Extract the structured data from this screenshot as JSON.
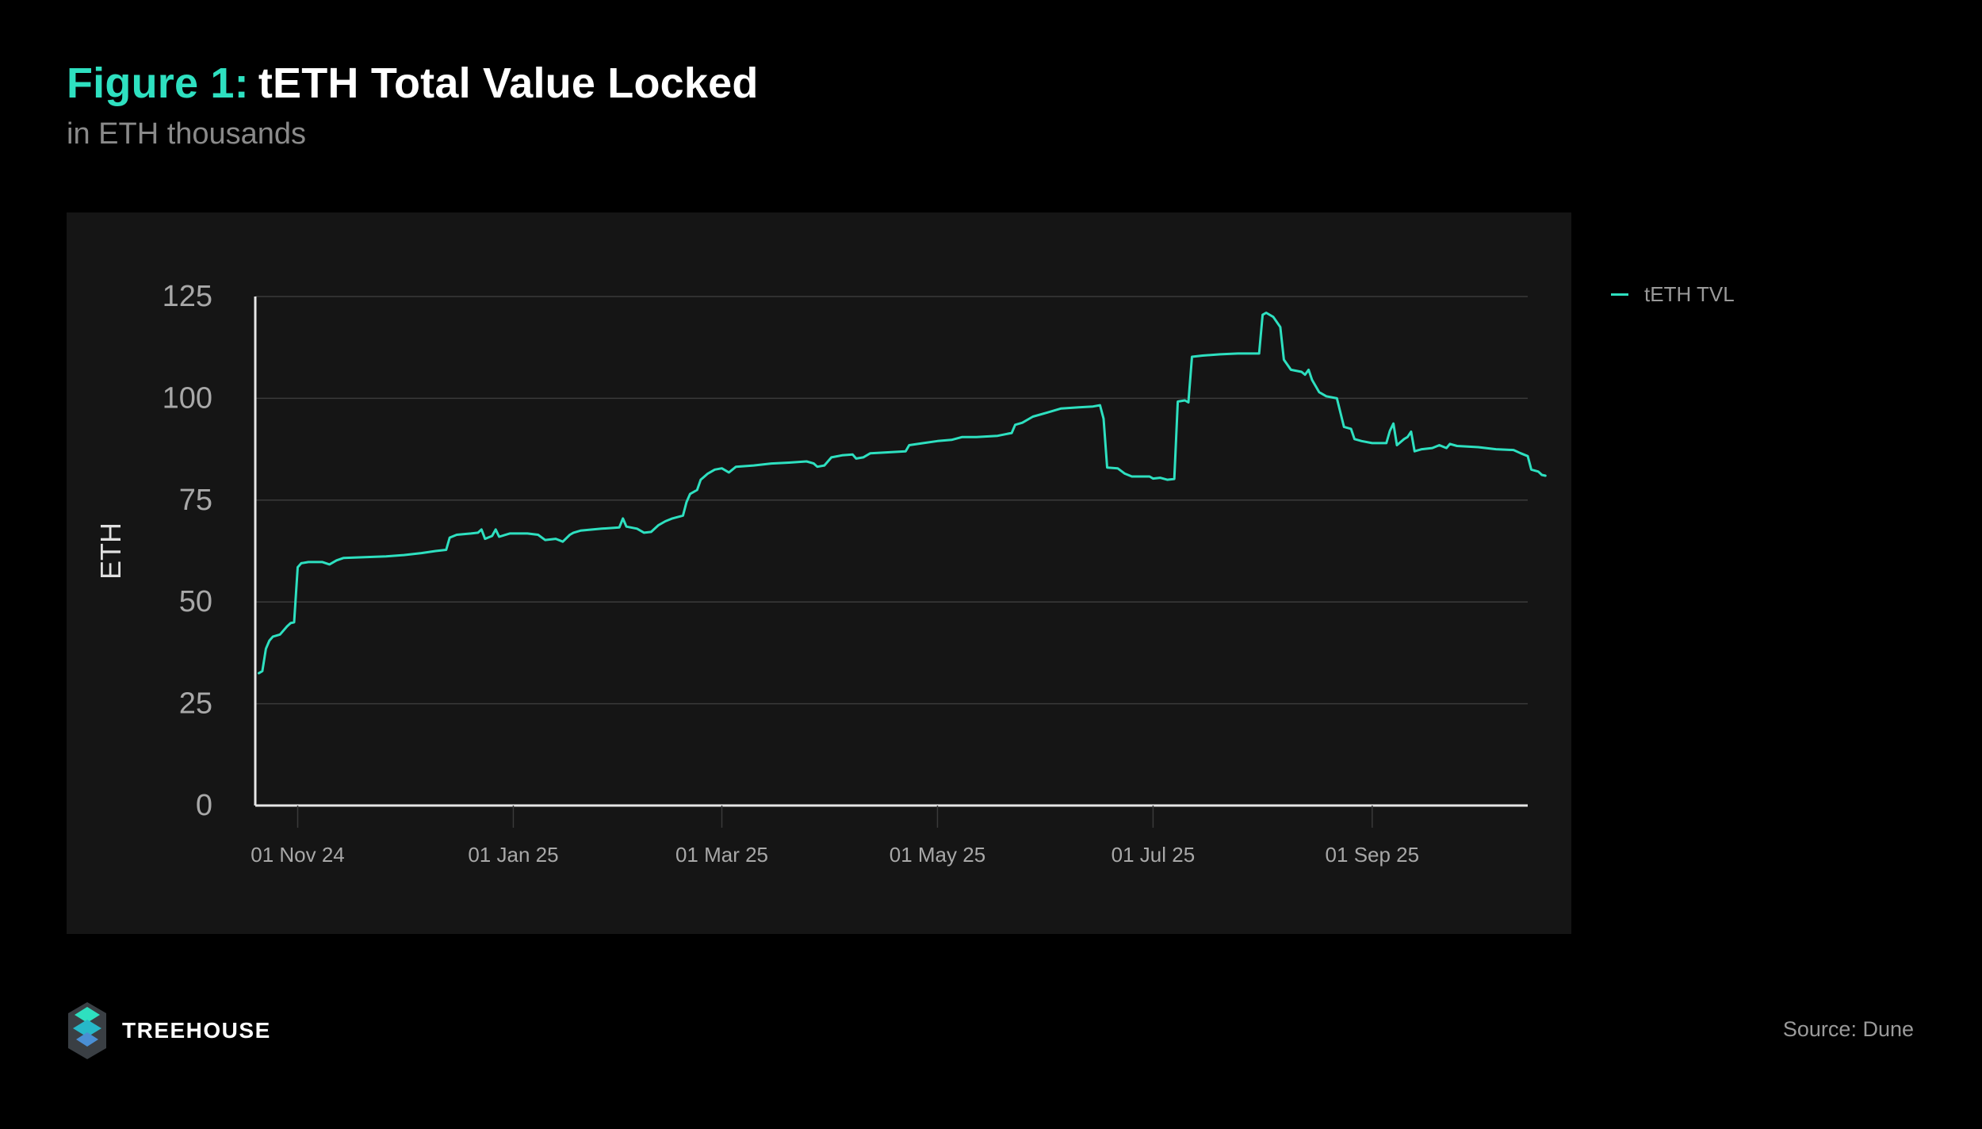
{
  "header": {
    "figure_label": "Figure 1:",
    "title": "tETH Total Value Locked",
    "subtitle": "in ETH thousands"
  },
  "footer": {
    "brand": "TREEHOUSE",
    "source": "Source: Dune"
  },
  "colors": {
    "accent": "#2ee0c0",
    "line": "#2ee0c0",
    "background": "#000000",
    "panel": "#151515",
    "grid": "#3a3a3a",
    "axis": "#e6e6e6",
    "muted_text": "#9a9a9a"
  },
  "chart_data": {
    "type": "line",
    "title": "",
    "xlabel": "",
    "ylabel": "ETH",
    "ylim": [
      0,
      125
    ],
    "xlim": [
      "2024-10-20",
      "2025-10-15"
    ],
    "y_ticks": [
      "0",
      "25",
      "50",
      "75",
      "100",
      "125"
    ],
    "x_ticks": [
      {
        "date": "2024-11-01",
        "label": "01 Nov 24"
      },
      {
        "date": "2025-01-01",
        "label": "01 Jan 25"
      },
      {
        "date": "2025-03-01",
        "label": "01 Mar 25"
      },
      {
        "date": "2025-05-01",
        "label": "01 May 25"
      },
      {
        "date": "2025-07-01",
        "label": "01 Jul 25"
      },
      {
        "date": "2025-09-01",
        "label": "01 Sep 25"
      }
    ],
    "grid": true,
    "legend": "top-right",
    "series": [
      {
        "name": "tETH TVL",
        "color": "#2ee0c0",
        "points": [
          [
            "2024-10-21",
            32.5
          ],
          [
            "2024-10-22",
            33.0
          ],
          [
            "2024-10-23",
            38.5
          ],
          [
            "2024-10-24",
            40.5
          ],
          [
            "2024-10-25",
            41.5
          ],
          [
            "2024-10-27",
            42.0
          ],
          [
            "2024-10-29",
            44.0
          ],
          [
            "2024-10-30",
            44.8
          ],
          [
            "2024-10-31",
            45.0
          ],
          [
            "2024-11-01",
            58.5
          ],
          [
            "2024-11-02",
            59.5
          ],
          [
            "2024-11-04",
            59.8
          ],
          [
            "2024-11-08",
            59.8
          ],
          [
            "2024-11-10",
            59.2
          ],
          [
            "2024-11-12",
            60.2
          ],
          [
            "2024-11-14",
            60.8
          ],
          [
            "2024-11-20",
            61.0
          ],
          [
            "2024-11-26",
            61.2
          ],
          [
            "2024-12-01",
            61.5
          ],
          [
            "2024-12-06",
            62.0
          ],
          [
            "2024-12-10",
            62.5
          ],
          [
            "2024-12-13",
            62.8
          ],
          [
            "2024-12-14",
            65.8
          ],
          [
            "2024-12-16",
            66.5
          ],
          [
            "2024-12-20",
            66.8
          ],
          [
            "2024-12-22",
            67.0
          ],
          [
            "2024-12-23",
            67.8
          ],
          [
            "2024-12-24",
            65.5
          ],
          [
            "2024-12-26",
            66.2
          ],
          [
            "2024-12-27",
            67.8
          ],
          [
            "2024-12-28",
            66.0
          ],
          [
            "2024-12-31",
            66.8
          ],
          [
            "2025-01-05",
            66.8
          ],
          [
            "2025-01-08",
            66.5
          ],
          [
            "2025-01-10",
            65.2
          ],
          [
            "2025-01-13",
            65.5
          ],
          [
            "2025-01-15",
            64.8
          ],
          [
            "2025-01-17",
            66.5
          ],
          [
            "2025-01-18",
            67.0
          ],
          [
            "2025-01-20",
            67.5
          ],
          [
            "2025-01-26",
            68.0
          ],
          [
            "2025-01-31",
            68.3
          ],
          [
            "2025-02-01",
            70.5
          ],
          [
            "2025-02-02",
            68.5
          ],
          [
            "2025-02-05",
            68.0
          ],
          [
            "2025-02-07",
            67.0
          ],
          [
            "2025-02-09",
            67.2
          ],
          [
            "2025-02-11",
            68.8
          ],
          [
            "2025-02-13",
            69.8
          ],
          [
            "2025-02-15",
            70.5
          ],
          [
            "2025-02-18",
            71.2
          ],
          [
            "2025-02-19",
            74.5
          ],
          [
            "2025-02-20",
            76.5
          ],
          [
            "2025-02-22",
            77.5
          ],
          [
            "2025-02-23",
            80.0
          ],
          [
            "2025-02-25",
            81.5
          ],
          [
            "2025-02-27",
            82.5
          ],
          [
            "2025-03-01",
            82.8
          ],
          [
            "2025-03-03",
            81.8
          ],
          [
            "2025-03-05",
            83.2
          ],
          [
            "2025-03-10",
            83.5
          ],
          [
            "2025-03-15",
            84.0
          ],
          [
            "2025-03-20",
            84.2
          ],
          [
            "2025-03-25",
            84.5
          ],
          [
            "2025-03-27",
            84.0
          ],
          [
            "2025-03-28",
            83.2
          ],
          [
            "2025-03-30",
            83.5
          ],
          [
            "2025-04-01",
            85.5
          ],
          [
            "2025-04-04",
            86.0
          ],
          [
            "2025-04-07",
            86.2
          ],
          [
            "2025-04-08",
            85.2
          ],
          [
            "2025-04-10",
            85.5
          ],
          [
            "2025-04-12",
            86.5
          ],
          [
            "2025-04-18",
            86.8
          ],
          [
            "2025-04-22",
            87.0
          ],
          [
            "2025-04-23",
            88.5
          ],
          [
            "2025-04-27",
            89.0
          ],
          [
            "2025-05-01",
            89.5
          ],
          [
            "2025-05-05",
            89.8
          ],
          [
            "2025-05-08",
            90.5
          ],
          [
            "2025-05-12",
            90.5
          ],
          [
            "2025-05-18",
            90.8
          ],
          [
            "2025-05-22",
            91.5
          ],
          [
            "2025-05-23",
            93.5
          ],
          [
            "2025-05-25",
            94.0
          ],
          [
            "2025-05-28",
            95.5
          ],
          [
            "2025-06-01",
            96.5
          ],
          [
            "2025-06-05",
            97.5
          ],
          [
            "2025-06-10",
            97.8
          ],
          [
            "2025-06-14",
            98.0
          ],
          [
            "2025-06-16",
            98.3
          ],
          [
            "2025-06-17",
            95.0
          ],
          [
            "2025-06-18",
            83.0
          ],
          [
            "2025-06-21",
            82.8
          ],
          [
            "2025-06-23",
            81.5
          ],
          [
            "2025-06-25",
            80.8
          ],
          [
            "2025-06-30",
            80.8
          ],
          [
            "2025-07-01",
            80.3
          ],
          [
            "2025-07-03",
            80.5
          ],
          [
            "2025-07-05",
            80.0
          ],
          [
            "2025-07-07",
            80.2
          ],
          [
            "2025-07-08",
            99.2
          ],
          [
            "2025-07-10",
            99.5
          ],
          [
            "2025-07-11",
            99.0
          ],
          [
            "2025-07-12",
            110.2
          ],
          [
            "2025-07-15",
            110.5
          ],
          [
            "2025-07-20",
            110.8
          ],
          [
            "2025-07-25",
            111.0
          ],
          [
            "2025-07-31",
            111.0
          ],
          [
            "2025-08-01",
            120.5
          ],
          [
            "2025-08-02",
            121.0
          ],
          [
            "2025-08-04",
            120.0
          ],
          [
            "2025-08-06",
            117.5
          ],
          [
            "2025-08-07",
            109.5
          ],
          [
            "2025-08-09",
            107.0
          ],
          [
            "2025-08-12",
            106.5
          ],
          [
            "2025-08-13",
            105.8
          ],
          [
            "2025-08-14",
            107.0
          ],
          [
            "2025-08-15",
            104.5
          ],
          [
            "2025-08-17",
            101.5
          ],
          [
            "2025-08-19",
            100.5
          ],
          [
            "2025-08-22",
            100.0
          ],
          [
            "2025-08-24",
            93.0
          ],
          [
            "2025-08-26",
            92.5
          ],
          [
            "2025-08-27",
            90.0
          ],
          [
            "2025-08-29",
            89.5
          ],
          [
            "2025-09-01",
            89.0
          ],
          [
            "2025-09-05",
            89.0
          ],
          [
            "2025-09-06",
            92.0
          ],
          [
            "2025-09-07",
            93.8
          ],
          [
            "2025-09-08",
            88.5
          ],
          [
            "2025-09-10",
            90.0
          ],
          [
            "2025-09-11",
            90.5
          ],
          [
            "2025-09-12",
            91.8
          ],
          [
            "2025-09-13",
            87.0
          ],
          [
            "2025-09-15",
            87.5
          ],
          [
            "2025-09-18",
            87.8
          ],
          [
            "2025-09-20",
            88.5
          ],
          [
            "2025-09-22",
            87.8
          ],
          [
            "2025-09-23",
            88.8
          ],
          [
            "2025-09-25",
            88.3
          ],
          [
            "2025-10-01",
            88.0
          ],
          [
            "2025-10-06",
            87.5
          ],
          [
            "2025-10-11",
            87.3
          ],
          [
            "2025-10-13",
            86.5
          ],
          [
            "2025-10-15",
            85.8
          ],
          [
            "2025-10-16",
            82.5
          ],
          [
            "2025-10-18",
            82.0
          ],
          [
            "2025-10-19",
            81.2
          ],
          [
            "2025-10-20",
            81.0
          ]
        ]
      }
    ]
  }
}
